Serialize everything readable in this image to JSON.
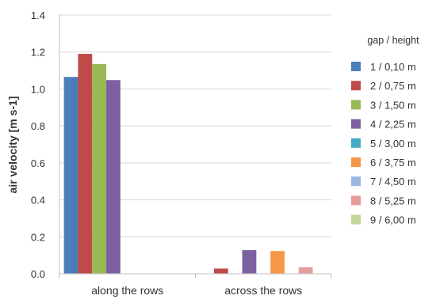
{
  "chart_data": {
    "type": "bar",
    "title": "",
    "xlabel": "",
    "ylabel": "air velocity [m s-1]",
    "ylim": [
      0,
      1.4
    ],
    "yticks": [
      "0.0",
      "0.2",
      "0.4",
      "0.6",
      "0.8",
      "1.0",
      "1.2",
      "1.4"
    ],
    "categories": [
      "along the rows",
      "across the rows"
    ],
    "grid": true,
    "legend_position": "right",
    "legend_title": "gap / height",
    "series": [
      {
        "name": "1 / 0,10 m",
        "color": "#4a7ebb",
        "values": [
          1.065,
          0.0
        ]
      },
      {
        "name": "2 / 0,75 m",
        "color": "#be4b48",
        "values": [
          1.19,
          0.028
        ]
      },
      {
        "name": "3 / 1,50 m",
        "color": "#98b954",
        "values": [
          1.135,
          0.0
        ]
      },
      {
        "name": "4 / 2,25 m",
        "color": "#7d60a0",
        "values": [
          1.048,
          0.128
        ]
      },
      {
        "name": "5 / 3,00 m",
        "color": "#46aac5",
        "values": [
          0.0,
          0.0
        ]
      },
      {
        "name": "6 / 3,75 m",
        "color": "#f79646",
        "values": [
          0.0,
          0.123
        ]
      },
      {
        "name": "7 / 4,50 m",
        "color": "#9bb7e2",
        "values": [
          0.0,
          0.0
        ]
      },
      {
        "name": "8 / 5,25 m",
        "color": "#e59c9b",
        "values": [
          0.0,
          0.035
        ]
      },
      {
        "name": "9 / 6,00 m",
        "color": "#c3d69b",
        "values": [
          0.0,
          0.0
        ]
      }
    ]
  }
}
